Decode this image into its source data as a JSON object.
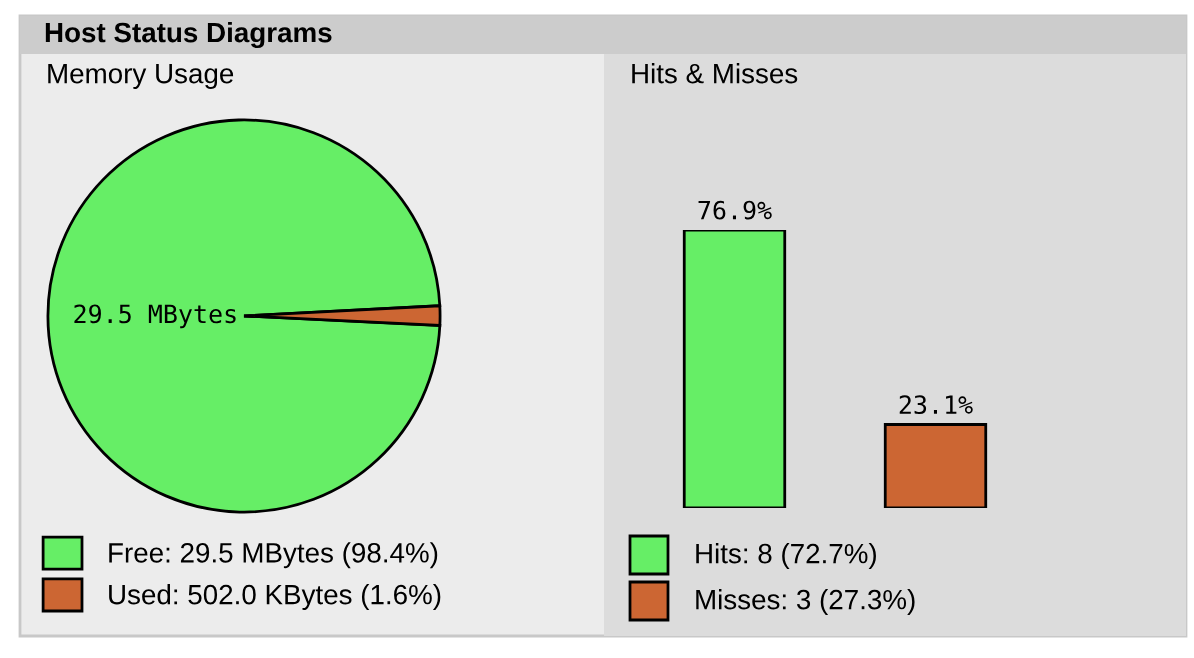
{
  "chart_data": [
    {
      "type": "pie",
      "title": "Memory Usage",
      "annotations": [
        "Host Status Diagrams",
        "29.5 MBytes"
      ],
      "categories": [
        "Free: 29.5 MBytes (98.4%)",
        "Used: 502.0 KBytes (1.6%)"
      ],
      "values": [
        98.4,
        1.6
      ],
      "colors": [
        "#66ee66",
        "#cc6633"
      ],
      "legend": "bottom"
    },
    {
      "type": "bar",
      "title": "Hits & Misses",
      "categories": [
        null,
        null
      ],
      "values": [
        76.9,
        23.1
      ],
      "colors": [
        "#66ee66",
        "#cc6633"
      ],
      "value_labels": [
        "76.9%",
        "23.1%"
      ],
      "annotations": [
        "Hits: 8 (72.7%)",
        "Misses: 3 (27.3%)"
      ]
    }
  ]
}
